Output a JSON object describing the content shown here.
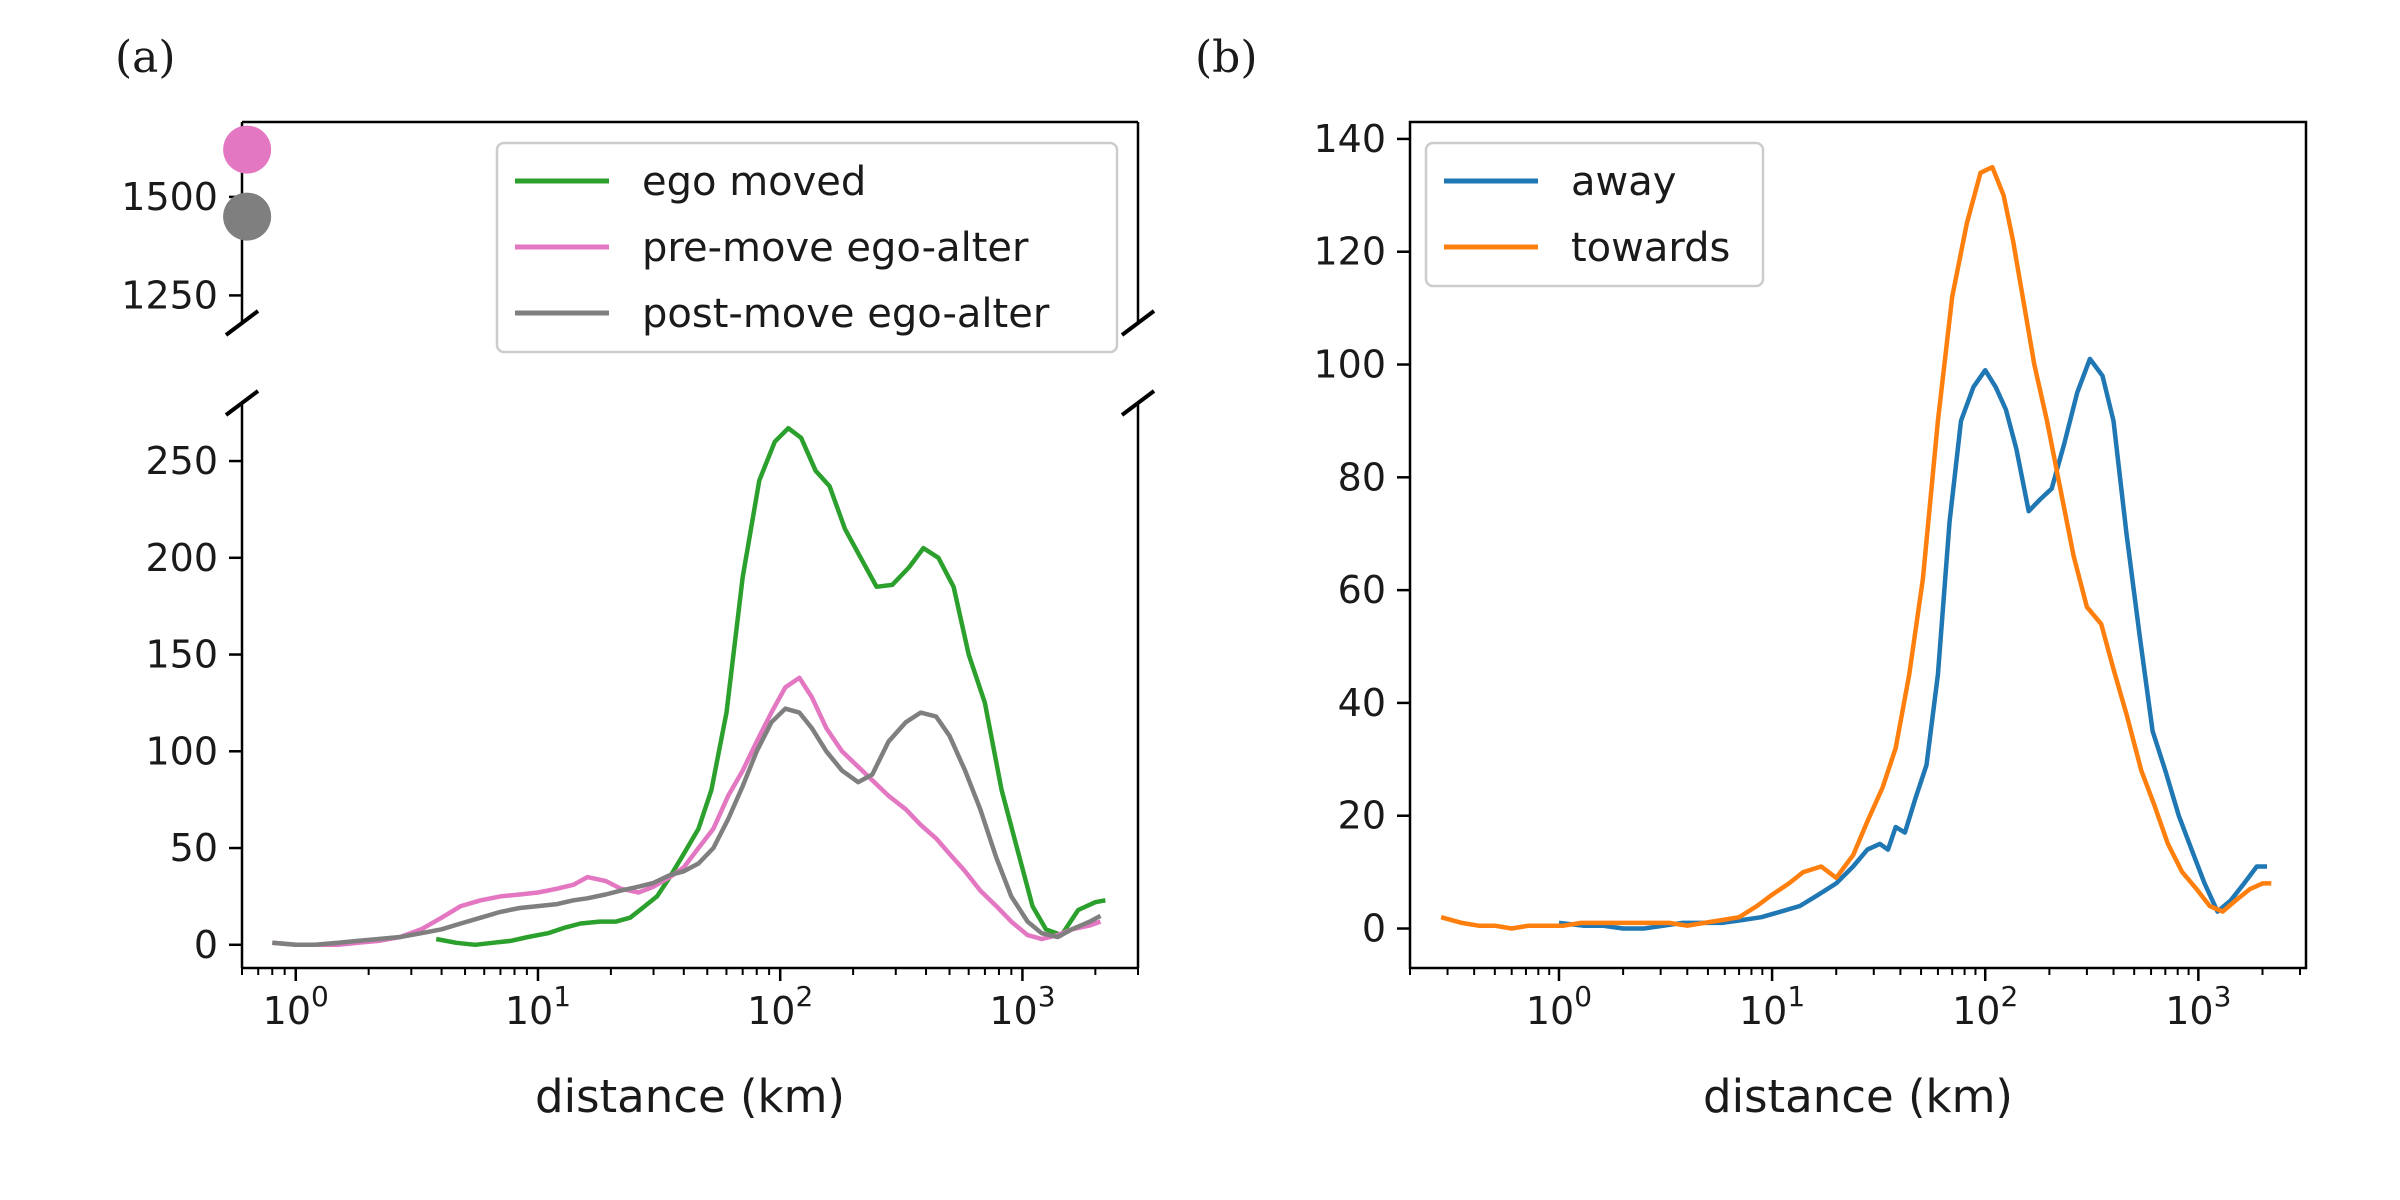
{
  "chart_data": [
    {
      "panel_label": "(a)",
      "type": "line",
      "xlabel": "distance (km)",
      "xscale": "log",
      "xlim": [
        0.6,
        3000
      ],
      "x_ticks": [
        {
          "base": "10",
          "exp": "0",
          "value": 1
        },
        {
          "base": "10",
          "exp": "1",
          "value": 10
        },
        {
          "base": "10",
          "exp": "2",
          "value": 100
        },
        {
          "base": "10",
          "exp": "3",
          "value": 1000
        }
      ],
      "broken_y_axis": true,
      "ylim_lower": [
        -12,
        280
      ],
      "ylim_upper": [
        1180,
        1690
      ],
      "y_ticks_lower": [
        "0",
        "50",
        "100",
        "150",
        "200",
        "250"
      ],
      "y_ticks_upper": [
        "1250",
        "1500"
      ],
      "legend": {
        "position": "top-right",
        "entries": [
          "ego moved",
          "pre-move ego-alter",
          "post-move ego-alter"
        ]
      },
      "series": [
        {
          "name": "ego moved",
          "color": "#2ca02c",
          "x": [
            3.8,
            4.6,
            5.5,
            6.5,
            7.7,
            9.1,
            11,
            13,
            15,
            18,
            21,
            24,
            27,
            31,
            35,
            40,
            46,
            52,
            60,
            70,
            82,
            95,
            108,
            122,
            140,
            160,
            185,
            215,
            250,
            290,
            340,
            390,
            450,
            520,
            600,
            700,
            820,
            950,
            1100,
            1250,
            1450,
            1700,
            2000,
            2200
          ],
          "y": [
            3,
            1,
            0,
            1,
            2,
            4,
            6,
            9,
            11,
            12,
            12,
            14,
            19,
            25,
            35,
            47,
            60,
            80,
            120,
            190,
            240,
            260,
            267,
            262,
            245,
            237,
            215,
            200,
            185,
            186,
            195,
            205,
            200,
            185,
            150,
            125,
            80,
            50,
            20,
            8,
            5,
            18,
            22,
            23
          ]
        },
        {
          "name": "pre-move ego-alter",
          "color": "#e377c2",
          "x": [
            0.8,
            1.0,
            1.2,
            1.5,
            1.8,
            2.2,
            2.7,
            3.3,
            4.0,
            4.8,
            5.8,
            7.0,
            8.4,
            10,
            12,
            14,
            16,
            19,
            22,
            26,
            30,
            35,
            40,
            46,
            53,
            61,
            70,
            80,
            92,
            105,
            120,
            135,
            155,
            180,
            210,
            240,
            280,
            330,
            380,
            440,
            500,
            580,
            670,
            780,
            900,
            1050,
            1200,
            1400,
            1600,
            1900,
            2100
          ],
          "y": [
            1,
            0,
            0,
            0,
            1,
            2,
            4,
            8,
            14,
            20,
            23,
            25,
            26,
            27,
            29,
            31,
            35,
            33,
            29,
            27,
            30,
            35,
            40,
            50,
            60,
            77,
            90,
            105,
            120,
            133,
            138,
            128,
            112,
            100,
            92,
            85,
            77,
            70,
            62,
            55,
            47,
            38,
            28,
            20,
            12,
            5,
            3,
            5,
            8,
            10,
            12
          ]
        },
        {
          "name": "post-move ego-alter",
          "color": "#7f7f7f",
          "x": [
            0.8,
            1.0,
            1.2,
            1.5,
            1.8,
            2.2,
            2.7,
            3.3,
            4.0,
            4.8,
            5.8,
            7.0,
            8.4,
            10,
            12,
            14,
            16,
            19,
            22,
            26,
            30,
            35,
            40,
            46,
            53,
            61,
            70,
            80,
            92,
            105,
            120,
            135,
            155,
            180,
            210,
            240,
            280,
            330,
            380,
            440,
            500,
            580,
            670,
            780,
            900,
            1050,
            1200,
            1400,
            1600,
            1900,
            2100
          ],
          "y": [
            1,
            0,
            0,
            1,
            2,
            3,
            4,
            6,
            8,
            11,
            14,
            17,
            19,
            20,
            21,
            23,
            24,
            26,
            28,
            30,
            32,
            36,
            38,
            42,
            50,
            65,
            82,
            100,
            115,
            122,
            120,
            112,
            100,
            90,
            84,
            88,
            105,
            115,
            120,
            118,
            108,
            90,
            70,
            45,
            25,
            12,
            6,
            4,
            8,
            12,
            15
          ]
        }
      ],
      "upper_points": [
        {
          "series": "pre-move ego-alter",
          "color": "#e377c2",
          "x": 0.63,
          "y": 1620
        },
        {
          "series": "post-move ego-alter",
          "color": "#7f7f7f",
          "x": 0.63,
          "y": 1450
        }
      ]
    },
    {
      "panel_label": "(b)",
      "type": "line",
      "xlabel": "distance (km)",
      "xscale": "log",
      "xlim": [
        0.2,
        3200
      ],
      "ylim": [
        -7,
        143
      ],
      "x_ticks": [
        {
          "base": "10",
          "exp": "0",
          "value": 1
        },
        {
          "base": "10",
          "exp": "1",
          "value": 10
        },
        {
          "base": "10",
          "exp": "2",
          "value": 100
        },
        {
          "base": "10",
          "exp": "3",
          "value": 1000
        }
      ],
      "y_ticks": [
        "0",
        "20",
        "40",
        "60",
        "80",
        "100",
        "120",
        "140"
      ],
      "legend": {
        "position": "top-left",
        "entries": [
          "away",
          "towards"
        ]
      },
      "series": [
        {
          "name": "away",
          "color": "#1f77b4",
          "x": [
            1.0,
            1.3,
            1.6,
            2.0,
            2.5,
            3.1,
            3.8,
            4.7,
            5.8,
            7.2,
            8.9,
            11,
            13.5,
            16.5,
            20,
            24,
            28,
            32,
            35,
            38,
            42,
            47,
            53,
            60,
            68,
            77,
            88,
            100,
            112,
            125,
            140,
            160,
            180,
            205,
            235,
            270,
            310,
            355,
            400,
            460,
            530,
            610,
            700,
            810,
            930,
            1070,
            1230,
            1420,
            1640,
            1880,
            2100
          ],
          "y": [
            1,
            0.5,
            0.5,
            0,
            0,
            0.5,
            1,
            1,
            1,
            1.5,
            2,
            3,
            4,
            6,
            8,
            11,
            14,
            15,
            14,
            18,
            17,
            23,
            29,
            45,
            72,
            90,
            96,
            99,
            96,
            92,
            85,
            74,
            76,
            78,
            86,
            95,
            101,
            98,
            90,
            70,
            52,
            35,
            28,
            20,
            14,
            8,
            3,
            5,
            8,
            11,
            11
          ]
        },
        {
          "name": "towards",
          "color": "#ff7f0e",
          "x": [
            0.28,
            0.35,
            0.42,
            0.5,
            0.6,
            0.72,
            0.87,
            1.05,
            1.27,
            1.53,
            1.85,
            2.25,
            2.7,
            3.3,
            4.0,
            4.8,
            5.8,
            7.0,
            8.5,
            10,
            12,
            14,
            17,
            20,
            24,
            28,
            33,
            38,
            44,
            51,
            60,
            70,
            82,
            95,
            108,
            122,
            135,
            150,
            170,
            195,
            225,
            260,
            300,
            350,
            400,
            460,
            540,
            620,
            720,
            840,
            980,
            1130,
            1300,
            1500,
            1750,
            2000,
            2200
          ],
          "y": [
            2,
            1,
            0.5,
            0.5,
            0,
            0.5,
            0.5,
            0.5,
            1,
            1,
            1,
            1,
            1,
            1,
            0.5,
            1,
            1.5,
            2,
            4,
            6,
            8,
            10,
            11,
            9,
            13,
            19,
            25,
            32,
            45,
            62,
            90,
            112,
            125,
            134,
            135,
            130,
            122,
            112,
            100,
            90,
            78,
            66,
            57,
            54,
            46,
            38,
            28,
            22,
            15,
            10,
            7,
            4,
            3,
            5,
            7,
            8,
            8
          ]
        }
      ]
    }
  ]
}
